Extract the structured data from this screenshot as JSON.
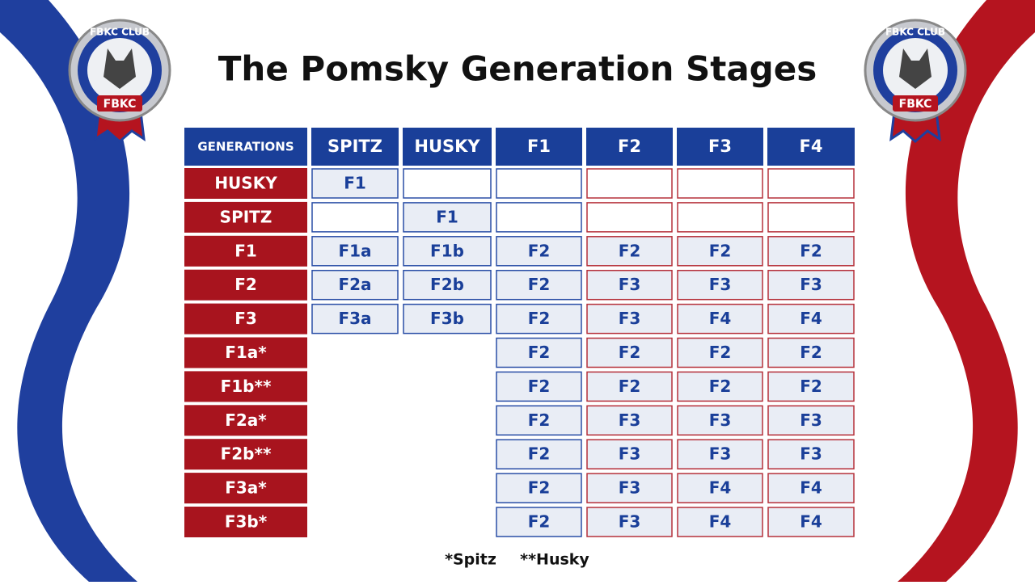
{
  "header": {
    "title": "The Pomsky Generation Stages"
  },
  "badges": {
    "top": "FBKC CLUB",
    "center": "FBKC"
  },
  "table": {
    "columns": [
      "GENERATIONS",
      "SPITZ",
      "HUSKY",
      "F1",
      "F2",
      "F3",
      "F4"
    ],
    "rows": [
      {
        "label": "HUSKY",
        "cells": [
          "F1",
          null,
          null,
          null,
          null,
          null
        ]
      },
      {
        "label": "SPITZ",
        "cells": [
          null,
          "F1",
          null,
          null,
          null,
          null
        ]
      },
      {
        "label": "F1",
        "cells": [
          "F1a",
          "F1b",
          "F2",
          "F2",
          "F2",
          "F2"
        ]
      },
      {
        "label": "F2",
        "cells": [
          "F2a",
          "F2b",
          "F2",
          "F3",
          "F3",
          "F3"
        ]
      },
      {
        "label": "F3",
        "cells": [
          "F3a",
          "F3b",
          "F2",
          "F3",
          "F4",
          "F4"
        ]
      },
      {
        "label": "F1a*",
        "cells": [
          "F2",
          "F2",
          "F2",
          "F2"
        ]
      },
      {
        "label": "F1b**",
        "cells": [
          "F2",
          "F2",
          "F2",
          "F2"
        ]
      },
      {
        "label": "F2a*",
        "cells": [
          "F2",
          "F3",
          "F3",
          "F3"
        ]
      },
      {
        "label": "F2b**",
        "cells": [
          "F2",
          "F3",
          "F3",
          "F3"
        ]
      },
      {
        "label": "F3a*",
        "cells": [
          "F2",
          "F3",
          "F4",
          "F4"
        ]
      },
      {
        "label": "F3b*",
        "cells": [
          "F2",
          "F3",
          "F4",
          "F4"
        ]
      }
    ]
  },
  "footnotes": [
    "*Spitz",
    "**Husky"
  ]
}
